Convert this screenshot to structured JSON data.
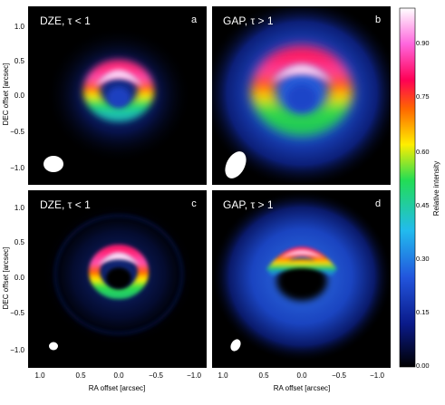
{
  "panels": [
    {
      "id": "a",
      "title": "DZE,  τ < 1",
      "letter": "a"
    },
    {
      "id": "b",
      "title": "GAP,  τ > 1",
      "letter": "b"
    },
    {
      "id": "c",
      "title": "DZE,  τ < 1",
      "letter": "c"
    },
    {
      "id": "d",
      "title": "GAP,  τ > 1",
      "letter": "d"
    }
  ],
  "axes": {
    "ylabel": "DEC offset [arcsec]",
    "xlabel": "RA offset [arcsec]",
    "y_ticks": [
      "1.0",
      "0.5",
      "0.0",
      "−0.5",
      "−1.0"
    ],
    "x_ticks": [
      "1.0",
      "0.5",
      "0.0",
      "−0.5",
      "−1.0"
    ]
  },
  "colorbar": {
    "label": "Relative intensity",
    "ticks": [
      "0.90",
      "0.75",
      "0.60",
      "0.45",
      "0.30",
      "0.15",
      "0.00"
    ],
    "stops": [
      "#000000",
      "#0a1a8a",
      "#2255dd",
      "#22bbee",
      "#22dd55",
      "#ffee00",
      "#ff6600",
      "#ff0055",
      "#ff66dd",
      "#ffffff"
    ]
  }
}
